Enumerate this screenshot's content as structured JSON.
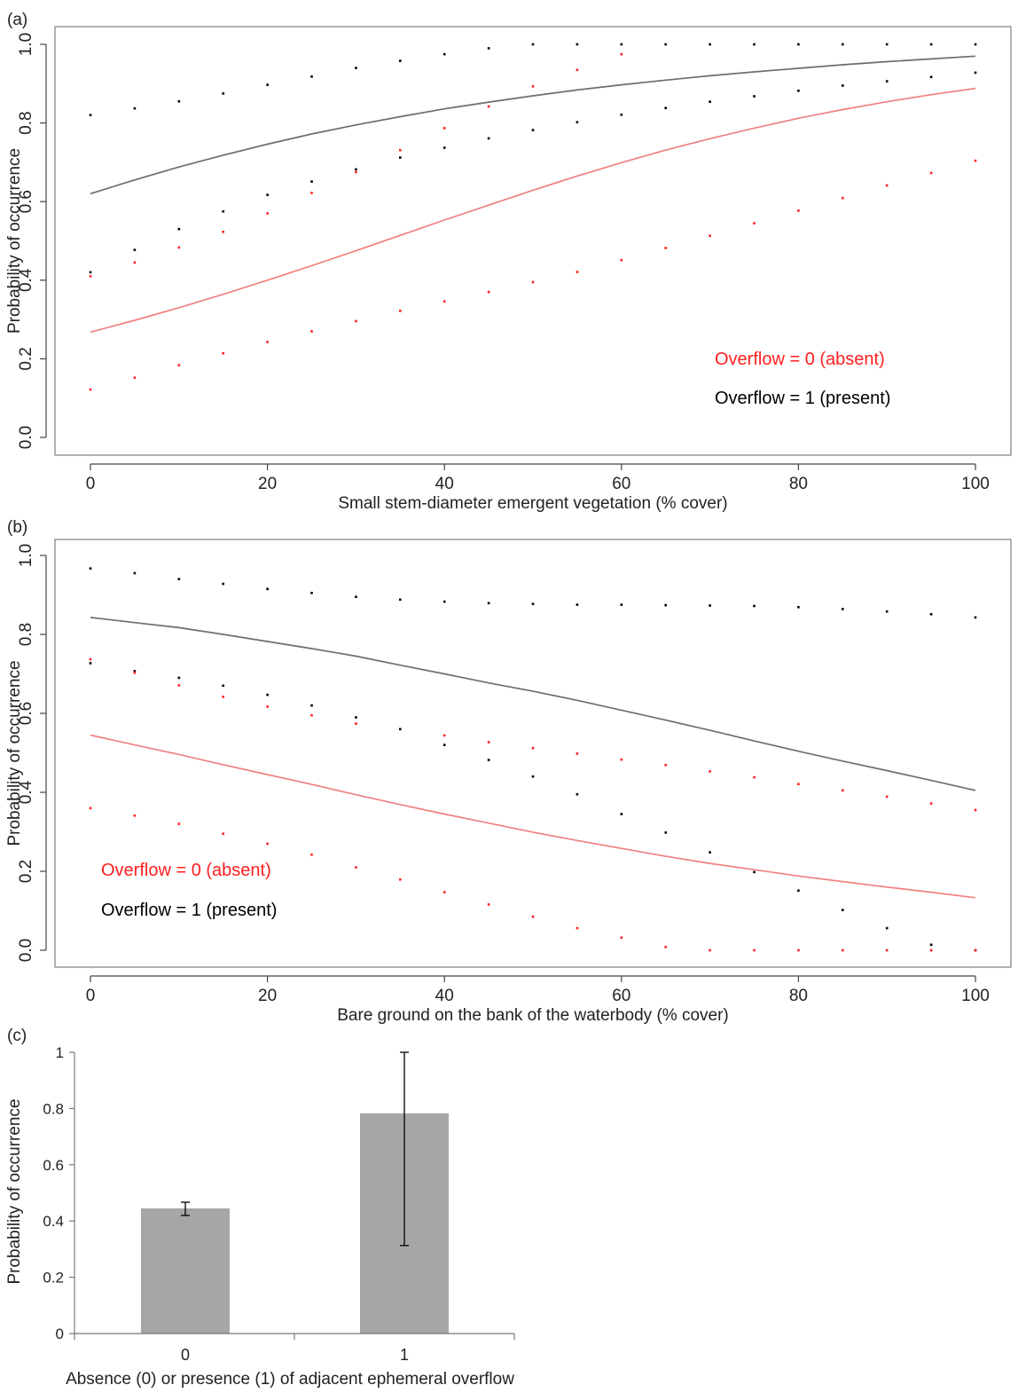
{
  "chart_data": [
    {
      "panel": "(a)",
      "type": "scatter",
      "xlabel": "Small stem-diameter emergent vegetation (% cover)",
      "ylabel": "Probability of occurrence",
      "xlim": [
        0,
        100
      ],
      "ylim": [
        0,
        1
      ],
      "x_ticks": [
        "0",
        "20",
        "40",
        "60",
        "80",
        "100"
      ],
      "y_ticks": [
        "0.0",
        "0.2",
        "0.4",
        "0.6",
        "0.8",
        "1.0"
      ],
      "legend_position": "bottom-right",
      "legend": [
        {
          "label": "Overflow = 0 (absent)",
          "color": "#ff2020"
        },
        {
          "label": "Overflow = 1 (present)",
          "color": "#000000"
        }
      ],
      "x": [
        0,
        5,
        10,
        15,
        20,
        25,
        30,
        35,
        40,
        45,
        50,
        55,
        60,
        65,
        70,
        75,
        80,
        85,
        90,
        95,
        100
      ],
      "series": [
        {
          "name": "Overflow = 1 fitted",
          "kind": "line",
          "color": "#6e6e6e",
          "values": [
            0.62,
            0.655,
            0.688,
            0.718,
            0.746,
            0.772,
            0.795,
            0.816,
            0.836,
            0.853,
            0.869,
            0.884,
            0.897,
            0.909,
            0.92,
            0.93,
            0.939,
            0.948,
            0.956,
            0.963,
            0.97
          ]
        },
        {
          "name": "Overflow = 1 upper",
          "kind": "points",
          "color": "#000000",
          "values": [
            0.82,
            0.837,
            0.855,
            0.875,
            0.897,
            0.918,
            0.94,
            0.958,
            0.975,
            0.99,
            1.0,
            1.0,
            1.0,
            1.0,
            1.0,
            1.0,
            1.0,
            1.0,
            1.0,
            1.0,
            1.0
          ]
        },
        {
          "name": "Overflow = 1 lower",
          "kind": "points",
          "color": "#000000",
          "values": [
            0.42,
            0.477,
            0.53,
            0.575,
            0.617,
            0.651,
            0.682,
            0.712,
            0.737,
            0.761,
            0.782,
            0.802,
            0.821,
            0.838,
            0.854,
            0.868,
            0.882,
            0.895,
            0.906,
            0.917,
            0.928
          ]
        },
        {
          "name": "Overflow = 0 fitted",
          "kind": "line",
          "color": "#f08080",
          "values": [
            0.268,
            0.298,
            0.33,
            0.364,
            0.4,
            0.437,
            0.475,
            0.514,
            0.553,
            0.591,
            0.629,
            0.665,
            0.699,
            0.731,
            0.76,
            0.787,
            0.812,
            0.834,
            0.854,
            0.872,
            0.888
          ]
        },
        {
          "name": "Overflow = 0 upper",
          "kind": "points",
          "color": "#ff2020",
          "values": [
            0.41,
            0.445,
            0.483,
            0.523,
            0.57,
            0.622,
            0.675,
            0.731,
            0.787,
            0.842,
            0.893,
            0.935,
            0.975,
            null,
            null,
            null,
            null,
            null,
            null,
            null,
            null
          ]
        },
        {
          "name": "Overflow = 0 lower",
          "kind": "points",
          "color": "#ff2020",
          "values": [
            0.122,
            0.152,
            0.184,
            0.214,
            0.243,
            0.27,
            0.296,
            0.322,
            0.346,
            0.37,
            0.395,
            0.421,
            0.451,
            0.482,
            0.513,
            0.545,
            0.577,
            0.609,
            0.641,
            0.673,
            0.704
          ]
        }
      ]
    },
    {
      "panel": "(b)",
      "type": "scatter",
      "xlabel": "Bare ground on the bank of the waterbody (% cover)",
      "ylabel": "Probability of occurrence",
      "xlim": [
        0,
        100
      ],
      "ylim": [
        0,
        1
      ],
      "x_ticks": [
        "0",
        "20",
        "40",
        "60",
        "80",
        "100"
      ],
      "y_ticks": [
        "0.0",
        "0.2",
        "0.4",
        "0.6",
        "0.8",
        "1.0"
      ],
      "legend_position": "bottom-left",
      "legend": [
        {
          "label": "Overflow = 0 (absent)",
          "color": "#ff2020"
        },
        {
          "label": "Overflow = 1 (present)",
          "color": "#000000"
        }
      ],
      "x": [
        0,
        5,
        10,
        15,
        20,
        25,
        30,
        35,
        40,
        45,
        50,
        55,
        60,
        65,
        70,
        75,
        80,
        85,
        90,
        95,
        100
      ],
      "series": [
        {
          "name": "Overflow = 1 fitted",
          "kind": "line",
          "color": "#6e6e6e",
          "values": [
            0.843,
            0.83,
            0.817,
            0.8,
            0.782,
            0.764,
            0.745,
            0.722,
            0.7,
            0.677,
            0.656,
            0.633,
            0.608,
            0.583,
            0.557,
            0.53,
            0.504,
            0.479,
            0.455,
            0.43,
            0.405
          ]
        },
        {
          "name": "Overflow = 1 upper",
          "kind": "points",
          "color": "#000000",
          "values": [
            0.967,
            0.955,
            0.94,
            0.928,
            0.915,
            0.905,
            0.895,
            0.888,
            0.883,
            0.879,
            0.877,
            0.875,
            0.875,
            0.874,
            0.873,
            0.872,
            0.869,
            0.864,
            0.858,
            0.851,
            0.843
          ]
        },
        {
          "name": "Overflow = 1 lower",
          "kind": "points",
          "color": "#000000",
          "values": [
            0.727,
            0.707,
            0.69,
            0.67,
            0.647,
            0.62,
            0.59,
            0.56,
            0.52,
            0.482,
            0.44,
            0.395,
            0.345,
            0.298,
            0.248,
            0.198,
            0.151,
            0.102,
            0.056,
            0.014,
            0.0
          ]
        },
        {
          "name": "Overflow = 0 fitted",
          "kind": "line",
          "color": "#f08080",
          "values": [
            0.545,
            0.52,
            0.496,
            0.47,
            0.445,
            0.42,
            0.394,
            0.369,
            0.345,
            0.322,
            0.299,
            0.278,
            0.258,
            0.238,
            0.22,
            0.204,
            0.188,
            0.174,
            0.16,
            0.147,
            0.133
          ]
        },
        {
          "name": "Overflow = 0 upper",
          "kind": "points",
          "color": "#ff2020",
          "values": [
            0.737,
            0.703,
            0.671,
            0.642,
            0.617,
            0.595,
            0.574,
            null,
            0.544,
            0.527,
            0.512,
            0.498,
            0.483,
            0.469,
            0.453,
            0.438,
            0.421,
            0.405,
            0.389,
            0.372,
            0.355
          ]
        },
        {
          "name": "Overflow = 0 lower",
          "kind": "points",
          "color": "#ff2020",
          "values": [
            0.36,
            0.341,
            0.32,
            0.295,
            0.27,
            0.242,
            0.21,
            0.179,
            0.147,
            0.116,
            0.085,
            0.056,
            0.032,
            0.008,
            0.0,
            0.0,
            0.0,
            0.0,
            0.0,
            0.0,
            0.0
          ]
        }
      ]
    },
    {
      "panel": "(c)",
      "type": "bar",
      "xlabel": "Absence (0) or presence (1) of adjacent ephemeral overflow",
      "ylabel": "Probability of occurrence",
      "ylim": [
        0,
        1
      ],
      "y_ticks": [
        "0",
        "0.2",
        "0.4",
        "0.6",
        "0.8",
        "1"
      ],
      "categories": [
        "0",
        "1"
      ],
      "values": [
        0.445,
        0.783
      ],
      "error_low": [
        0.42,
        0.313
      ],
      "error_high": [
        0.467,
        1.0
      ],
      "bar_color": "#a6a6a6"
    }
  ]
}
